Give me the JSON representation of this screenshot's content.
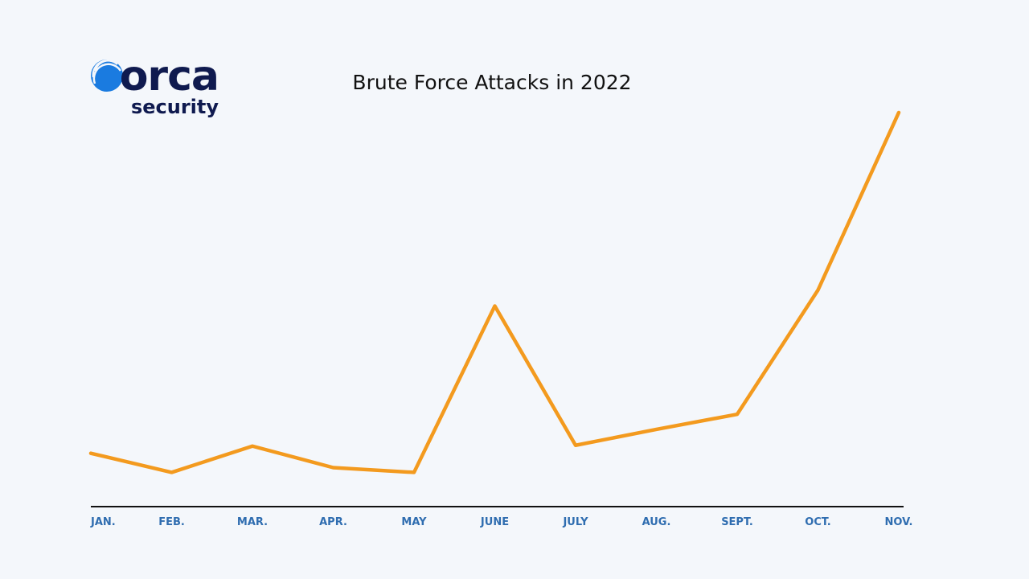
{
  "logo": {
    "name": "orca",
    "tagline": "security"
  },
  "chart_data": {
    "type": "line",
    "title": "Brute Force Attacks in 2022",
    "categories": [
      "JAN.",
      "FEB.",
      "MAR.",
      "APR.",
      "MAY",
      "JUNE",
      "JULY",
      "AUG.",
      "SEPT.",
      "OCT.",
      "NOV."
    ],
    "values": [
      67,
      43,
      76,
      49,
      43,
      252,
      77,
      97,
      116,
      272,
      495
    ],
    "color": "#f39a1e",
    "ylim": [
      0,
      500
    ]
  }
}
